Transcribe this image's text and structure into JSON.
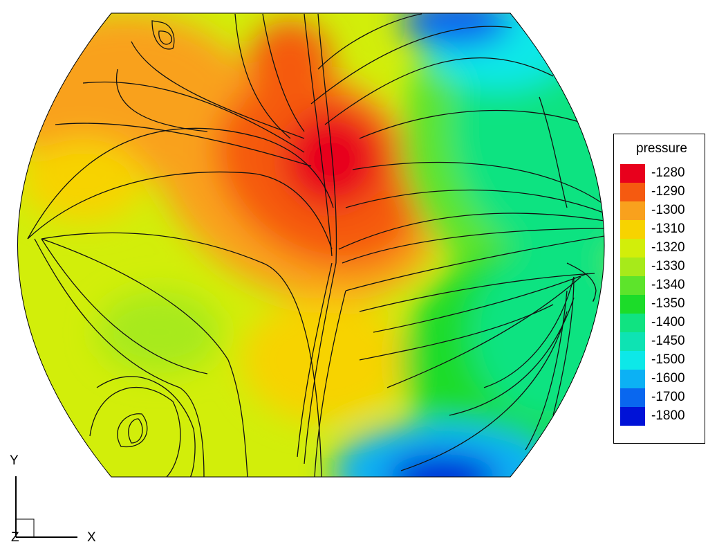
{
  "legend": {
    "title": "pressure",
    "levels": [
      {
        "label": "-1280",
        "color": "#e8001c"
      },
      {
        "label": "-1290",
        "color": "#f55a10"
      },
      {
        "label": "-1300",
        "color": "#f9a11d"
      },
      {
        "label": "-1310",
        "color": "#f7d300"
      },
      {
        "label": "-1320",
        "color": "#d2ee0a"
      },
      {
        "label": "-1330",
        "color": "#a7ea1a"
      },
      {
        "label": "-1340",
        "color": "#5de42b"
      },
      {
        "label": "-1350",
        "color": "#1cdc29"
      },
      {
        "label": "-1400",
        "color": "#10e381"
      },
      {
        "label": "-1450",
        "color": "#0ee3b3"
      },
      {
        "label": "-1500",
        "color": "#0de8e8"
      },
      {
        "label": "-1600",
        "color": "#0cb1f4"
      },
      {
        "label": "-1700",
        "color": "#0967ef"
      },
      {
        "label": "-1800",
        "color": "#0012d7"
      }
    ]
  },
  "axes": {
    "y_label": "Y",
    "x_label": "X",
    "z_label": "Z"
  }
}
